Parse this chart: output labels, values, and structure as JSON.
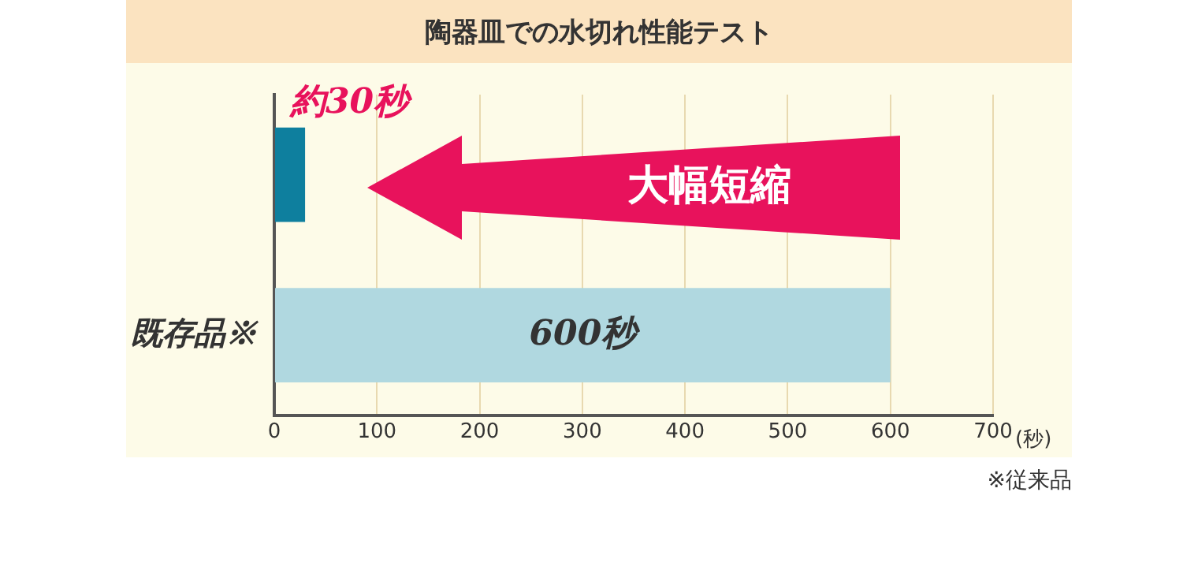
{
  "chart_data": {
    "type": "bar",
    "orientation": "horizontal",
    "title": "陶器皿での水切れ性能テスト",
    "categories": [
      null,
      "既存品※"
    ],
    "values": [
      30,
      600
    ],
    "colors": [
      "#0e7f9e",
      "#b0d8e0"
    ],
    "value_labels": [
      "約30秒",
      "600秒"
    ],
    "xlabel": "(秒)",
    "xlim": [
      0,
      700
    ],
    "xticks": [
      0,
      100,
      200,
      300,
      400,
      500,
      600,
      700
    ],
    "grid": "x",
    "legend": false,
    "annotations": [
      "大幅短縮",
      "※従来品"
    ]
  }
}
